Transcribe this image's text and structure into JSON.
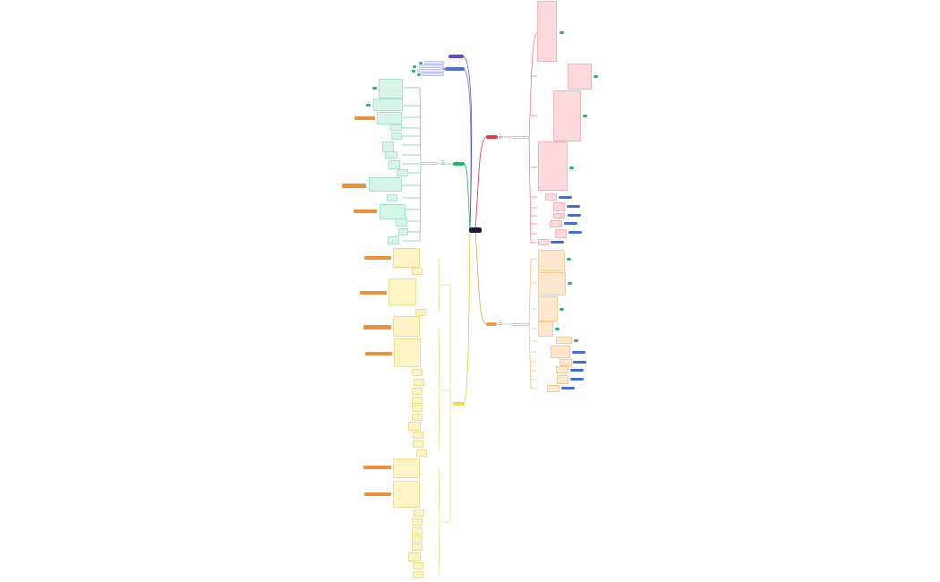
{
  "root": {
    "label": ""
  },
  "colors": {
    "background": "#ffffff",
    "root": "#1b1c3a",
    "branch_red": "#e8343b",
    "branch_orange": "#f39a3b",
    "branch_green": "#27b26d",
    "branch_yellow": "#f7d84a",
    "branch_purple": "#5b4bd6",
    "branch_blue": "#4c6fe0",
    "card_pink": "#fbd9dc",
    "card_peach": "#fde7cf",
    "card_mint": "#d7f5e6",
    "card_cream": "#fdf3c4",
    "tag_green": "#27b26d",
    "tag_orange": "#ee8f3a",
    "tag_blue": "#3f6ae0"
  },
  "branches": [
    {
      "id": "red",
      "side": "right",
      "color": "branch_red"
    },
    {
      "id": "orange",
      "side": "right",
      "color": "branch_orange"
    },
    {
      "id": "purple",
      "side": "left",
      "color": "branch_purple"
    },
    {
      "id": "blue",
      "side": "left",
      "color": "branch_blue"
    },
    {
      "id": "green",
      "side": "left",
      "color": "branch_green"
    },
    {
      "id": "yellow",
      "side": "left",
      "color": "branch_yellow"
    }
  ]
}
